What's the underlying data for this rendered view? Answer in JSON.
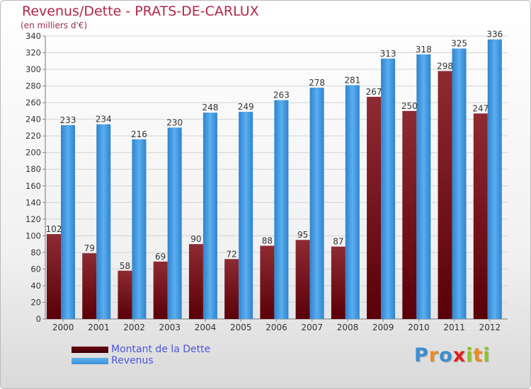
{
  "title": "Revenus/Dette - PRATS-DE-CARLUX",
  "subtitle": "(en milliers d'€)",
  "colors": {
    "debt": "#7a1620",
    "revenue": "#3c92d8",
    "title": "#b3244a",
    "legend_text": "#4a56d9"
  },
  "legend": [
    {
      "label": "Montant de la Dette",
      "color": "#6e0a14"
    },
    {
      "label": "Revenus",
      "color": "#3c92d8"
    }
  ],
  "logo": {
    "letters": [
      "P",
      "r",
      "o",
      "x",
      "i",
      "t",
      "i"
    ],
    "colors": [
      "#3a8fd0",
      "#f08a1c",
      "#3a8fd0",
      "#e0201c",
      "#8fc31f",
      "#f08a1c",
      "#8fc31f"
    ]
  },
  "chart_data": {
    "type": "bar",
    "categories": [
      "2000",
      "2001",
      "2002",
      "2003",
      "2004",
      "2005",
      "2006",
      "2007",
      "2008",
      "2009",
      "2010",
      "2011",
      "2012"
    ],
    "series": [
      {
        "name": "Montant de la Dette",
        "values": [
          102,
          79,
          58,
          69,
          90,
          72,
          88,
          95,
          87,
          267,
          250,
          298,
          247
        ]
      },
      {
        "name": "Revenus",
        "values": [
          233,
          234,
          216,
          230,
          248,
          249,
          263,
          278,
          281,
          313,
          318,
          325,
          336
        ]
      }
    ],
    "ylim": [
      0,
      340
    ],
    "yticks": [
      0,
      20,
      40,
      60,
      80,
      100,
      120,
      140,
      160,
      180,
      200,
      220,
      240,
      260,
      280,
      300,
      320,
      340
    ],
    "grid": true,
    "legend_position": "bottom-left"
  }
}
